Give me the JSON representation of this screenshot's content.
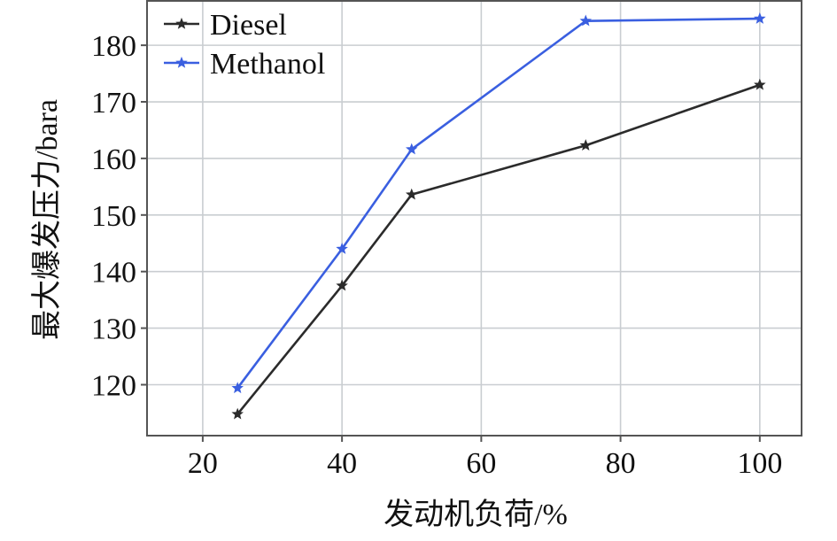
{
  "chart_data": {
    "type": "line",
    "title": "",
    "xlabel": "发动机负荷/%",
    "ylabel": "最大爆发压力/bara",
    "x": [
      25,
      40,
      50,
      75,
      100
    ],
    "series": [
      {
        "name": "Diesel",
        "color": "#2b2b2b",
        "marker": "star",
        "values": [
          114.8,
          137.5,
          153.6,
          162.3,
          173.0
        ]
      },
      {
        "name": "Methanol",
        "color": "#3a5fe0",
        "marker": "star",
        "values": [
          119.4,
          144.0,
          161.6,
          184.3,
          184.7
        ]
      }
    ],
    "xlim": [
      12,
      106
    ],
    "ylim": [
      111,
      188
    ],
    "xticks": [
      20,
      40,
      60,
      80,
      100
    ],
    "yticks": [
      120,
      130,
      140,
      150,
      160,
      170,
      180
    ],
    "grid": true,
    "legend_position": "top-left"
  }
}
